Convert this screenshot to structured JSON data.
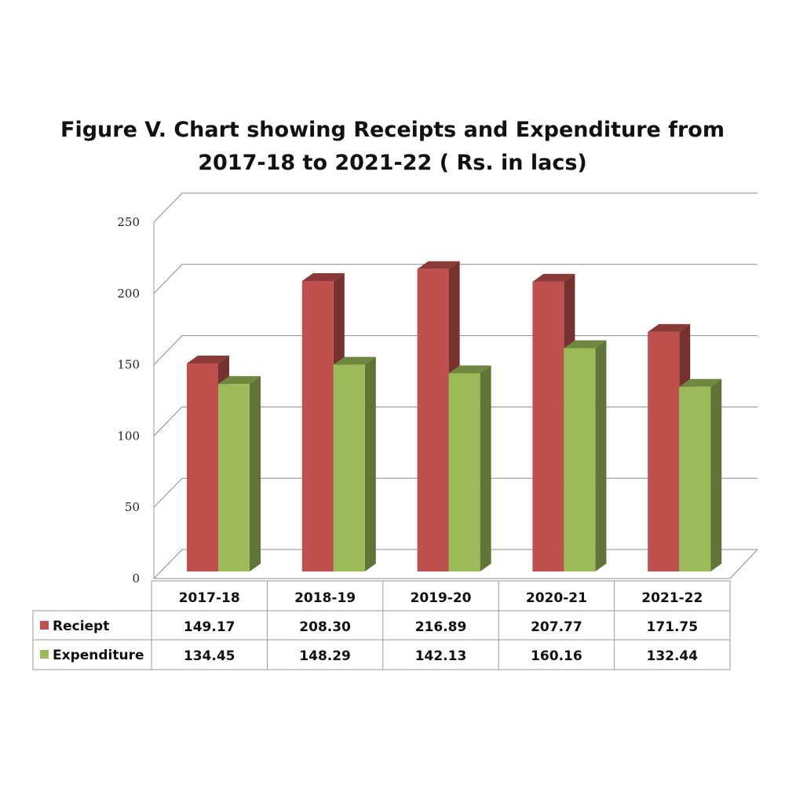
{
  "title_line1": "Figure V. Chart showing Receipts and Expenditure from",
  "title_line2": "2017-18 to 2021-22 ( Rs. in lacs)",
  "chart_data": {
    "type": "bar",
    "title": "Figure V. Chart showing Receipts and Expenditure from 2017-18 to 2021-22 ( Rs. in lacs)",
    "categories": [
      "2017-18",
      "2018-19",
      "2019-20",
      "2020-21",
      "2021-22"
    ],
    "series": [
      {
        "name": "Reciept",
        "values": [
          149.17,
          208.3,
          216.89,
          207.77,
          171.75
        ],
        "labels": [
          "149.17",
          "208.30",
          "216.89",
          "207.77",
          "171.75"
        ],
        "color": "#c0504d"
      },
      {
        "name": "Expenditure",
        "values": [
          134.45,
          148.29,
          142.13,
          160.16,
          132.44
        ],
        "labels": [
          "134.45",
          "148.29",
          "142.13",
          "160.16",
          "132.44"
        ],
        "color": "#9bbb59"
      }
    ],
    "yticks": [
      "0",
      "50",
      "100",
      "150",
      "200",
      "250"
    ],
    "ylim": [
      0,
      250
    ],
    "grid": true,
    "style": "3d-column",
    "legend": "data-table"
  }
}
